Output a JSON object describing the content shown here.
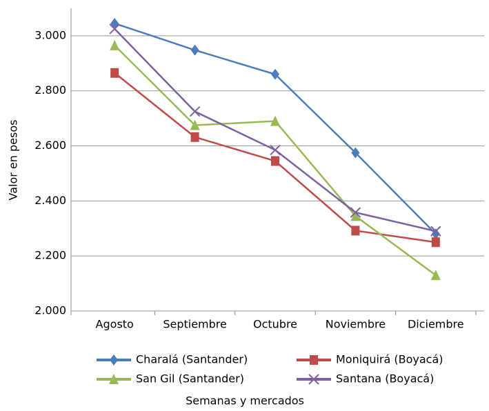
{
  "chart_data": {
    "type": "line",
    "x_label": "Semanas y mercados",
    "y_label": "Valor en pesos",
    "categories": [
      "Agosto",
      "Septiembre",
      "Octubre",
      "Noviembre",
      "Diciembre"
    ],
    "series": [
      {
        "name": "Charalá (Santander)",
        "color": "#4a7ebb",
        "marker": "diamond",
        "values": [
          3045,
          2948,
          2860,
          2575,
          2280
        ]
      },
      {
        "name": "Moniquirá (Boyacá)",
        "color": "#be4b48",
        "marker": "square",
        "values": [
          2865,
          2632,
          2545,
          2292,
          2250
        ]
      },
      {
        "name": "San Gil (Santander)",
        "color": "#98b954",
        "marker": "triangle",
        "values": [
          2965,
          2675,
          2690,
          2345,
          2130
        ]
      },
      {
        "name": "Santana (Boyacá)",
        "color": "#7d60a0",
        "marker": "x",
        "values": [
          3025,
          2725,
          2585,
          2358,
          2290
        ]
      }
    ],
    "ylim": [
      2000,
      3100
    ],
    "yticks": [
      {
        "value": 2000,
        "label": "2.000"
      },
      {
        "value": 2200,
        "label": "2.200"
      },
      {
        "value": 2400,
        "label": "2.400"
      },
      {
        "value": 2600,
        "label": "2.600"
      },
      {
        "value": 2800,
        "label": "2.800"
      },
      {
        "value": 3000,
        "label": "3.000"
      }
    ],
    "grid": true,
    "legend": "bottom"
  }
}
